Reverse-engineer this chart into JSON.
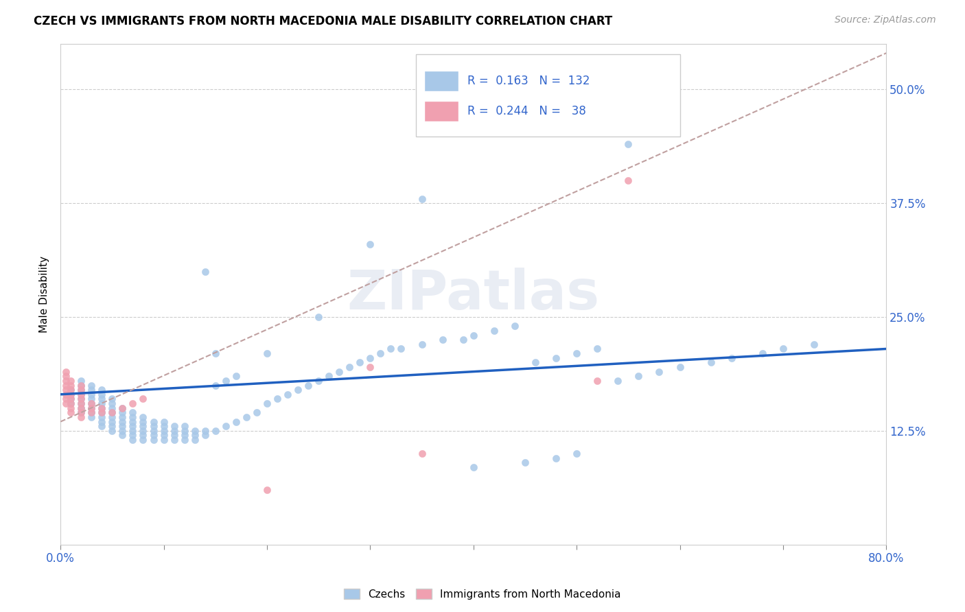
{
  "title": "CZECH VS IMMIGRANTS FROM NORTH MACEDONIA MALE DISABILITY CORRELATION CHART",
  "source": "Source: ZipAtlas.com",
  "ylabel": "Male Disability",
  "yticks": [
    0.125,
    0.25,
    0.375,
    0.5
  ],
  "ytick_labels": [
    "12.5%",
    "25.0%",
    "37.5%",
    "50.0%"
  ],
  "legend_label1": "Czechs",
  "legend_label2": "Immigrants from North Macedonia",
  "czech_color": "#a8c8e8",
  "immig_color": "#f0a0b0",
  "czech_line_color": "#2060c0",
  "immig_line_color": "#c0a0a0",
  "xmin": 0.0,
  "xmax": 0.8,
  "ymin": 0.0,
  "ymax": 0.55,
  "czech_line_x0": 0.0,
  "czech_line_y0": 0.165,
  "czech_line_x1": 0.8,
  "czech_line_y1": 0.215,
  "immig_line_x0": 0.0,
  "immig_line_y0": 0.135,
  "immig_line_x1": 0.8,
  "immig_line_y1": 0.54,
  "czechs_x": [
    0.01,
    0.01,
    0.01,
    0.01,
    0.02,
    0.02,
    0.02,
    0.02,
    0.02,
    0.02,
    0.02,
    0.02,
    0.03,
    0.03,
    0.03,
    0.03,
    0.03,
    0.03,
    0.03,
    0.03,
    0.04,
    0.04,
    0.04,
    0.04,
    0.04,
    0.04,
    0.04,
    0.04,
    0.04,
    0.05,
    0.05,
    0.05,
    0.05,
    0.05,
    0.05,
    0.05,
    0.05,
    0.06,
    0.06,
    0.06,
    0.06,
    0.06,
    0.06,
    0.06,
    0.07,
    0.07,
    0.07,
    0.07,
    0.07,
    0.07,
    0.07,
    0.08,
    0.08,
    0.08,
    0.08,
    0.08,
    0.08,
    0.09,
    0.09,
    0.09,
    0.09,
    0.09,
    0.1,
    0.1,
    0.1,
    0.1,
    0.1,
    0.11,
    0.11,
    0.11,
    0.11,
    0.12,
    0.12,
    0.12,
    0.12,
    0.13,
    0.13,
    0.13,
    0.14,
    0.14,
    0.14,
    0.15,
    0.15,
    0.15,
    0.16,
    0.16,
    0.17,
    0.17,
    0.18,
    0.19,
    0.2,
    0.2,
    0.21,
    0.22,
    0.23,
    0.24,
    0.25,
    0.26,
    0.27,
    0.28,
    0.29,
    0.3,
    0.31,
    0.32,
    0.33,
    0.35,
    0.37,
    0.39,
    0.4,
    0.42,
    0.44,
    0.46,
    0.48,
    0.5,
    0.52,
    0.54,
    0.56,
    0.58,
    0.6,
    0.63,
    0.65,
    0.68,
    0.7,
    0.73,
    0.5,
    0.45,
    0.4,
    0.35,
    0.25,
    0.3,
    0.55,
    0.48
  ],
  "czechs_y": [
    0.155,
    0.16,
    0.165,
    0.17,
    0.145,
    0.15,
    0.155,
    0.16,
    0.165,
    0.17,
    0.175,
    0.18,
    0.14,
    0.145,
    0.15,
    0.155,
    0.16,
    0.165,
    0.17,
    0.175,
    0.13,
    0.135,
    0.14,
    0.145,
    0.15,
    0.155,
    0.16,
    0.165,
    0.17,
    0.125,
    0.13,
    0.135,
    0.14,
    0.145,
    0.15,
    0.155,
    0.16,
    0.12,
    0.125,
    0.13,
    0.135,
    0.14,
    0.145,
    0.15,
    0.115,
    0.12,
    0.125,
    0.13,
    0.135,
    0.14,
    0.145,
    0.115,
    0.12,
    0.125,
    0.13,
    0.135,
    0.14,
    0.115,
    0.12,
    0.125,
    0.13,
    0.135,
    0.115,
    0.12,
    0.125,
    0.13,
    0.135,
    0.115,
    0.12,
    0.125,
    0.13,
    0.115,
    0.12,
    0.125,
    0.13,
    0.115,
    0.12,
    0.125,
    0.12,
    0.125,
    0.3,
    0.125,
    0.175,
    0.21,
    0.13,
    0.18,
    0.135,
    0.185,
    0.14,
    0.145,
    0.155,
    0.21,
    0.16,
    0.165,
    0.17,
    0.175,
    0.18,
    0.185,
    0.19,
    0.195,
    0.2,
    0.205,
    0.21,
    0.215,
    0.215,
    0.22,
    0.225,
    0.225,
    0.23,
    0.235,
    0.24,
    0.2,
    0.205,
    0.21,
    0.215,
    0.18,
    0.185,
    0.19,
    0.195,
    0.2,
    0.205,
    0.21,
    0.215,
    0.22,
    0.1,
    0.09,
    0.085,
    0.38,
    0.25,
    0.33,
    0.44,
    0.095
  ],
  "immig_x": [
    0.005,
    0.005,
    0.005,
    0.005,
    0.005,
    0.005,
    0.005,
    0.005,
    0.01,
    0.01,
    0.01,
    0.01,
    0.01,
    0.01,
    0.01,
    0.01,
    0.02,
    0.02,
    0.02,
    0.02,
    0.02,
    0.02,
    0.02,
    0.02,
    0.03,
    0.03,
    0.03,
    0.04,
    0.04,
    0.05,
    0.06,
    0.07,
    0.08,
    0.55,
    0.3,
    0.2,
    0.52,
    0.35
  ],
  "immig_y": [
    0.155,
    0.16,
    0.165,
    0.17,
    0.175,
    0.18,
    0.185,
    0.19,
    0.145,
    0.15,
    0.155,
    0.16,
    0.165,
    0.17,
    0.175,
    0.18,
    0.14,
    0.145,
    0.15,
    0.155,
    0.16,
    0.165,
    0.17,
    0.175,
    0.145,
    0.15,
    0.155,
    0.145,
    0.15,
    0.145,
    0.15,
    0.155,
    0.16,
    0.4,
    0.195,
    0.06,
    0.18,
    0.1
  ]
}
